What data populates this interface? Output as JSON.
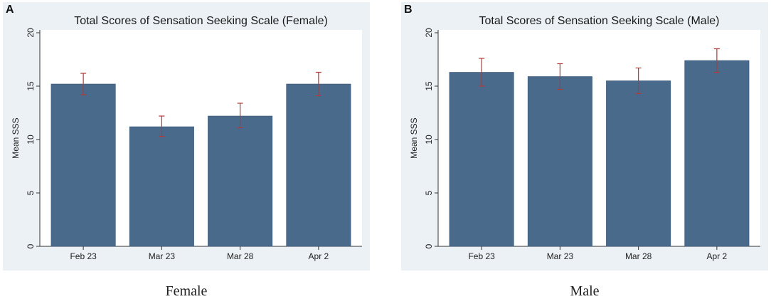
{
  "chart_data": [
    {
      "type": "bar",
      "panel_label": "A",
      "title": "Total Scores of Sensation Seeking Scale (Female)",
      "xlabel": "",
      "ylabel": "Mean SSS",
      "ylim": [
        0,
        20
      ],
      "yticks": [
        0,
        5,
        10,
        15,
        20
      ],
      "categories": [
        "Feb 23",
        "Mar 23",
        "Mar 28",
        "Apr 2"
      ],
      "values": [
        15.2,
        11.2,
        12.2,
        15.2
      ],
      "error_low": [
        14.2,
        10.3,
        11.1,
        14.1
      ],
      "error_high": [
        16.2,
        12.2,
        13.4,
        16.3
      ],
      "bar_color": "#4a6a8c",
      "error_color": "#b03a35",
      "caption": "Female"
    },
    {
      "type": "bar",
      "panel_label": "B",
      "title": "Total Scores of Sensation Seeking Scale (Male)",
      "xlabel": "",
      "ylabel": "Mean SSS",
      "ylim": [
        0,
        20
      ],
      "yticks": [
        0,
        5,
        10,
        15,
        20
      ],
      "categories": [
        "Feb 23",
        "Mar 23",
        "Mar 28",
        "Apr 2"
      ],
      "values": [
        16.3,
        15.9,
        15.5,
        17.4
      ],
      "error_low": [
        15.0,
        14.7,
        14.3,
        16.3
      ],
      "error_high": [
        17.6,
        17.1,
        16.7,
        18.5
      ],
      "bar_color": "#4a6a8c",
      "error_color": "#b03a35",
      "caption": "Male"
    }
  ]
}
